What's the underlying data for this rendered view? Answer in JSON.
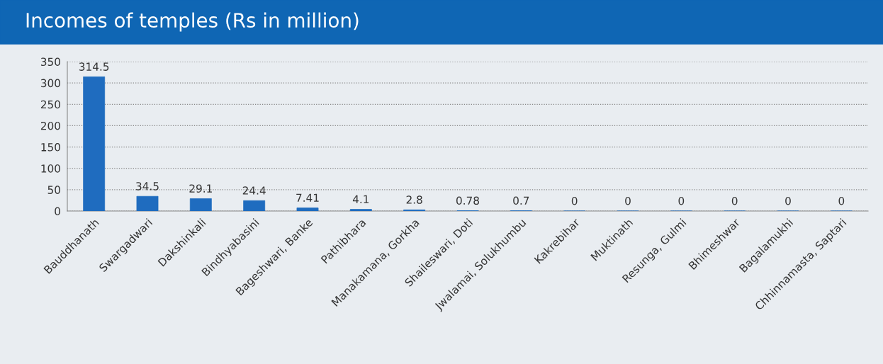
{
  "chart_data": {
    "type": "bar",
    "title": "Incomes of temples (Rs in million)",
    "categories": [
      "Bauddhanath",
      "Swargadwari",
      "Dakshinkali",
      "Bindhyabasini",
      "Bageshwari, Banke",
      "Pathibhara",
      "Manakamana, Gorkha",
      "Shaileswari, Doti",
      "Jwalamai, Solukhumbu",
      "Kakrebihar",
      "Muktinath",
      "Resunga, Gulmi",
      "Bhimeshwar",
      "Bagalamukhi",
      "Chhinnamasta, Saptari"
    ],
    "values": [
      314.5,
      34.5,
      29.1,
      24.4,
      7.41,
      4.1,
      2.8,
      0.78,
      0.7,
      0,
      0,
      0,
      0,
      0,
      0
    ],
    "color": "#1f6cbf",
    "ylim": [
      0,
      350
    ],
    "yticks": [
      0,
      50,
      100,
      150,
      200,
      250,
      300,
      350
    ],
    "grid": "y",
    "data_labels": true
  }
}
